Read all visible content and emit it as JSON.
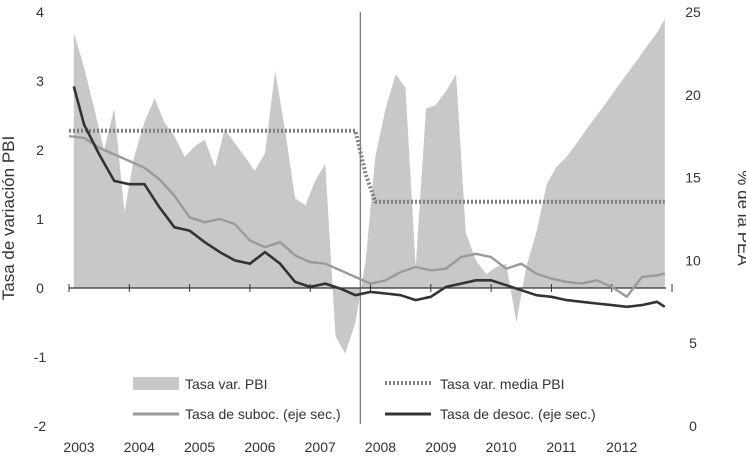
{
  "chart_data": {
    "type": "line",
    "x_ticks": [
      "2003",
      "2004",
      "2005",
      "2006",
      "2007",
      "2008",
      "2009",
      "2010",
      "2011",
      "2012"
    ],
    "y_left": {
      "label": "Tasa de variación PBI",
      "ylim": [
        -2,
        4
      ],
      "ticks": [
        "-2",
        "-1",
        "0",
        "1",
        "2",
        "3",
        "4"
      ]
    },
    "y_right": {
      "label": "% de la PEA",
      "ylim": [
        0,
        25
      ],
      "ticks": [
        "0",
        "5",
        "10",
        "15",
        "20",
        "25"
      ]
    },
    "vertical_line_at": 2007.83,
    "grid": false,
    "legend_position": "bottom",
    "series": [
      {
        "name": "Tasa var. PBI",
        "style": "area",
        "axis": "left",
        "color": "#c8c8c8",
        "x": [
          2003.08,
          2003.25,
          2003.42,
          2003.58,
          2003.75,
          2003.92,
          2004.08,
          2004.25,
          2004.42,
          2004.58,
          2004.75,
          2004.92,
          2005.08,
          2005.25,
          2005.42,
          2005.58,
          2005.75,
          2005.92,
          2006.08,
          2006.25,
          2006.42,
          2006.58,
          2006.75,
          2006.92,
          2007.08,
          2007.25,
          2007.42,
          2007.58,
          2007.75,
          2007.92,
          2008.08,
          2008.25,
          2008.42,
          2008.58,
          2008.75,
          2008.92,
          2009.08,
          2009.25,
          2009.42,
          2009.58,
          2009.75,
          2009.92,
          2010.08,
          2010.25,
          2010.42,
          2010.58,
          2010.75,
          2010.92,
          2011.08,
          2011.25,
          2011.42,
          2011.58,
          2011.75,
          2011.92,
          2012.08,
          2012.25,
          2012.42,
          2012.58,
          2012.75,
          2012.88
        ],
        "values": [
          3.7,
          3.2,
          2.6,
          2.0,
          2.6,
          1.1,
          1.9,
          2.4,
          2.75,
          2.4,
          2.2,
          1.9,
          2.05,
          2.15,
          1.75,
          2.3,
          2.1,
          1.9,
          1.7,
          1.95,
          3.15,
          2.3,
          1.3,
          1.2,
          1.55,
          1.8,
          -0.7,
          -0.95,
          -0.5,
          0.4,
          1.9,
          2.6,
          3.1,
          2.9,
          0.3,
          2.6,
          2.65,
          2.85,
          3.1,
          0.8,
          0.4,
          0.2,
          0.3,
          0.35,
          -0.5,
          0.3,
          0.8,
          1.5,
          1.75,
          1.9,
          2.1,
          2.3,
          2.5,
          2.7,
          2.9,
          3.1,
          3.3,
          3.5,
          3.7,
          3.9
        ]
      },
      {
        "name": "Tasa var. media PBI",
        "style": "dotted",
        "axis": "left",
        "color": "#808080",
        "x": [
          2003.0,
          2007.75,
          2007.92,
          2008.08,
          2012.88
        ],
        "values": [
          2.28,
          2.28,
          1.65,
          1.25,
          1.25
        ]
      },
      {
        "name": "Tasa de suboc. (eje sec.)",
        "style": "line",
        "axis": "right",
        "color": "#9a9a9a",
        "x": [
          2003.0,
          2003.25,
          2003.5,
          2003.75,
          2004.0,
          2004.25,
          2004.5,
          2004.75,
          2005.0,
          2005.25,
          2005.5,
          2005.75,
          2006.0,
          2006.25,
          2006.5,
          2006.75,
          2007.0,
          2007.25,
          2007.5,
          2007.75,
          2008.0,
          2008.25,
          2008.5,
          2008.75,
          2009.0,
          2009.25,
          2009.5,
          2009.75,
          2010.0,
          2010.25,
          2010.5,
          2010.75,
          2011.0,
          2011.25,
          2011.5,
          2011.75,
          2012.0,
          2012.25,
          2012.5,
          2012.75,
          2012.88
        ],
        "values": [
          17.5,
          17.4,
          16.8,
          16.4,
          16.0,
          15.6,
          14.9,
          13.9,
          12.6,
          12.3,
          12.5,
          12.2,
          11.2,
          10.8,
          11.1,
          10.3,
          9.9,
          9.8,
          9.4,
          9.0,
          8.6,
          8.8,
          9.3,
          9.6,
          9.4,
          9.5,
          10.2,
          10.4,
          10.2,
          9.5,
          9.8,
          9.2,
          8.9,
          8.7,
          8.6,
          8.8,
          8.4,
          7.8,
          9.0,
          9.1,
          9.2
        ]
      },
      {
        "name": "Tasa de desoc. (eje sec.)",
        "style": "line",
        "axis": "right",
        "color": "#333333",
        "x": [
          2003.08,
          2003.25,
          2003.5,
          2003.75,
          2004.0,
          2004.25,
          2004.5,
          2004.75,
          2005.0,
          2005.25,
          2005.5,
          2005.75,
          2006.0,
          2006.25,
          2006.5,
          2006.75,
          2007.0,
          2007.25,
          2007.5,
          2007.75,
          2008.0,
          2008.25,
          2008.5,
          2008.75,
          2009.0,
          2009.25,
          2009.5,
          2009.75,
          2010.0,
          2010.25,
          2010.5,
          2010.75,
          2011.0,
          2011.25,
          2011.5,
          2011.75,
          2012.0,
          2012.25,
          2012.5,
          2012.75,
          2012.88
        ],
        "values": [
          20.5,
          18.2,
          16.4,
          14.8,
          14.6,
          14.6,
          13.2,
          12.0,
          11.8,
          11.1,
          10.5,
          10.0,
          9.8,
          10.5,
          9.8,
          8.7,
          8.4,
          8.6,
          8.3,
          7.9,
          8.1,
          8.0,
          7.9,
          7.6,
          7.8,
          8.4,
          8.6,
          8.8,
          8.8,
          8.5,
          8.2,
          7.9,
          7.8,
          7.6,
          7.5,
          7.4,
          7.3,
          7.2,
          7.3,
          7.5,
          7.2
        ]
      }
    ]
  }
}
